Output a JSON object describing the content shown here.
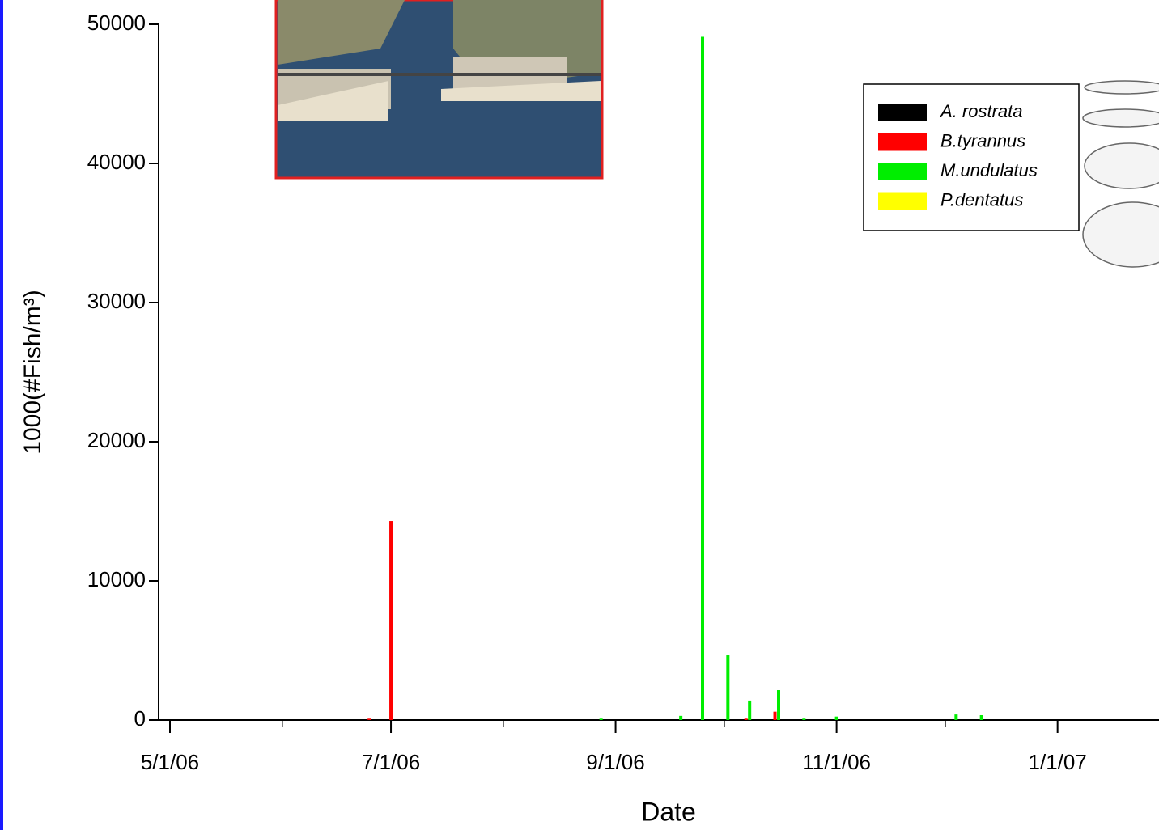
{
  "chart_data": {
    "type": "bar",
    "x_label": "Date",
    "y_label": "1000(#Fish/m³)",
    "xlim": [
      "5/1/06",
      "1/29/07"
    ],
    "xticks": [
      "5/1/06",
      "7/1/06",
      "9/1/06",
      "11/1/06",
      "1/1/07"
    ],
    "xminorticks": [
      "6/1/06",
      "8/1/06",
      "10/1/06",
      "12/1/06"
    ],
    "ylim": [
      0,
      50000
    ],
    "yticks": [
      0,
      10000,
      20000,
      30000,
      40000,
      50000
    ],
    "legend": "top-right",
    "series": [
      {
        "name": "A. rostrata",
        "color": "#000000",
        "x": [],
        "values": []
      },
      {
        "name": "B.tyrannus",
        "color": "#ff0000",
        "x": [
          "6/25/06",
          "7/1/06",
          "10/7/06",
          "10/15/06"
        ],
        "values": [
          100,
          14300,
          100,
          600
        ]
      },
      {
        "name": "M.undulatus",
        "color": "#00ee00",
        "x": [
          "8/28/06",
          "9/19/06",
          "9/25/06",
          "10/2/06",
          "10/8/06",
          "10/16/06",
          "10/23/06",
          "11/1/06",
          "12/4/06",
          "12/11/06"
        ],
        "values": [
          100,
          300,
          49100,
          4650,
          1400,
          2150,
          100,
          250,
          400,
          350
        ]
      },
      {
        "name": "P.dentatus",
        "color": "#ffff00",
        "x": [],
        "values": []
      }
    ]
  }
}
